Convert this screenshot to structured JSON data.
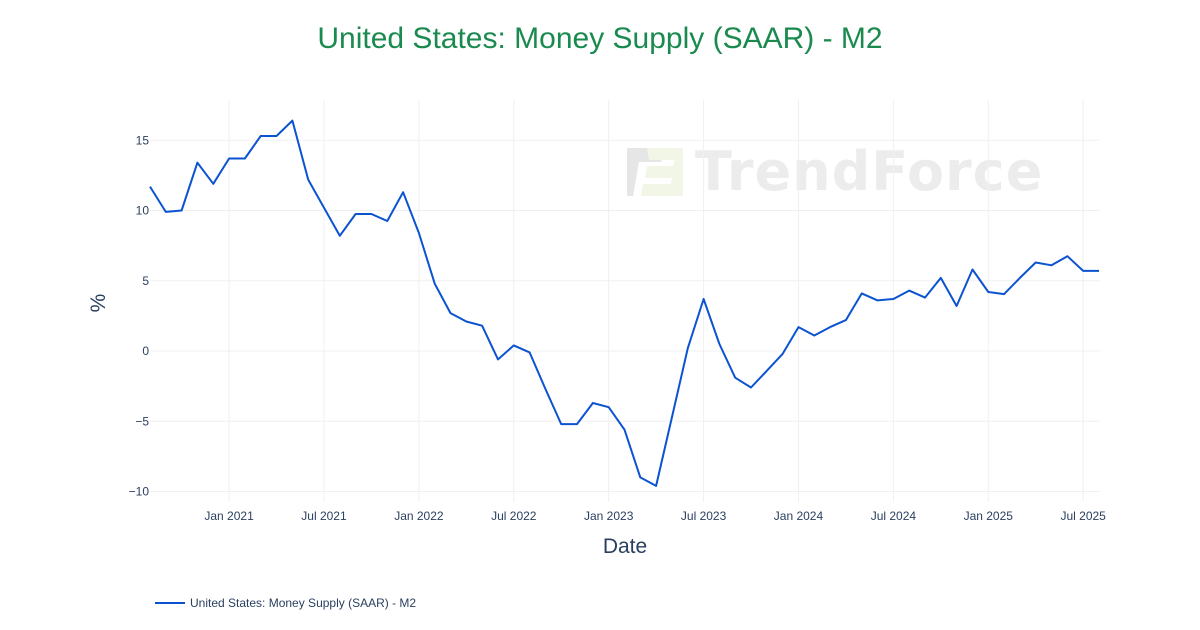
{
  "title": "United States: Money Supply (SAAR) - M2",
  "watermark": "TrendForce",
  "legend": {
    "label": "United States: Money Supply (SAAR) - M2",
    "color": "#0b53d1"
  },
  "colors": {
    "title": "#1a8a4f",
    "line": "#0b53d1",
    "grid": "#f0f0f0",
    "axis_text": "#2a3f5f"
  },
  "chart_data": {
    "type": "line",
    "title": "United States: Money Supply (SAAR) - M2",
    "xlabel": "Date",
    "ylabel": "%",
    "ylim": [
      -10.6,
      17.8
    ],
    "yticks": [
      15,
      10,
      5,
      0,
      -5,
      -10
    ],
    "ytick_labels": [
      "15",
      "10",
      "5",
      "0",
      "−5",
      "−10"
    ],
    "xticks": [
      "Jan 2021",
      "Jul 2021",
      "Jan 2022",
      "Jul 2022",
      "Jan 2023",
      "Jul 2023",
      "Jan 2024",
      "Jul 2024",
      "Jan 2025",
      "Jul 2025"
    ],
    "grid": true,
    "legend_position": "bottom-left",
    "series": [
      {
        "name": "United States: Money Supply (SAAR) - M2",
        "x": [
          "2020-08",
          "2020-09",
          "2020-10",
          "2020-11",
          "2020-12",
          "2021-01",
          "2021-02",
          "2021-03",
          "2021-04",
          "2021-05",
          "2021-06",
          "2021-07",
          "2021-08",
          "2021-09",
          "2021-10",
          "2021-11",
          "2021-12",
          "2022-01",
          "2022-02",
          "2022-03",
          "2022-04",
          "2022-05",
          "2022-06",
          "2022-07",
          "2022-08",
          "2022-09",
          "2022-10",
          "2022-11",
          "2022-12",
          "2023-01",
          "2023-02",
          "2023-03",
          "2023-04",
          "2023-05",
          "2023-06",
          "2023-07",
          "2023-08",
          "2023-09",
          "2023-10",
          "2023-11",
          "2023-12",
          "2024-01",
          "2024-02",
          "2024-03",
          "2024-04",
          "2024-05",
          "2024-06",
          "2024-07",
          "2024-08",
          "2024-09",
          "2024-10",
          "2024-11",
          "2024-12",
          "2025-01",
          "2025-02",
          "2025-03",
          "2025-04",
          "2025-05",
          "2025-06",
          "2025-07",
          "2025-08"
        ],
        "values": [
          11.7,
          9.9,
          10.0,
          13.4,
          11.9,
          13.7,
          13.7,
          15.3,
          15.3,
          16.4,
          12.2,
          10.2,
          8.2,
          9.75,
          9.75,
          9.25,
          11.3,
          8.4,
          4.8,
          2.7,
          2.1,
          1.8,
          -0.6,
          0.4,
          -0.1,
          -2.7,
          -5.2,
          -5.2,
          -3.7,
          -4.0,
          -5.6,
          -9.0,
          -9.6,
          -4.7,
          0.2,
          3.7,
          0.5,
          -1.9,
          -2.6,
          -1.4,
          -0.2,
          1.7,
          1.1,
          1.7,
          2.2,
          4.1,
          3.6,
          3.7,
          4.3,
          3.8,
          5.2,
          3.2,
          5.8,
          4.2,
          4.05,
          5.2,
          6.3,
          6.1,
          6.75,
          5.7,
          5.7
        ]
      }
    ]
  }
}
